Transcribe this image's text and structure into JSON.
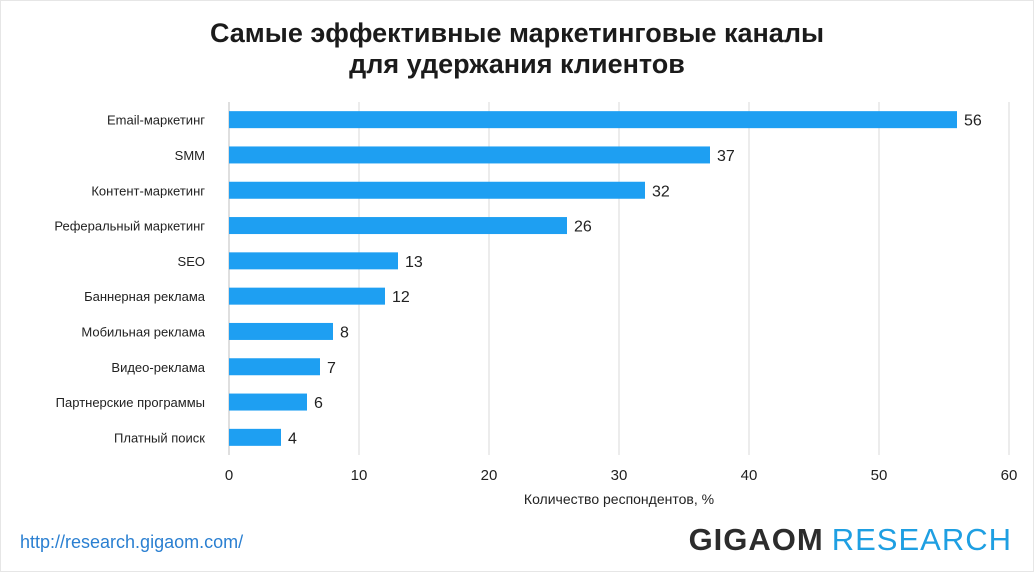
{
  "header": {
    "title_line1": "Самые эффективные маркетинговые каналы",
    "title_line2": "для удержания клиентов"
  },
  "footer": {
    "url": "http://research.gigaom.com/",
    "brand_bold": "GIGAOM",
    "brand_light": "RESEARCH"
  },
  "colors": {
    "bar": "#1e9ff2",
    "grid": "#d9d9d9",
    "text": "#222222"
  },
  "chart_data": {
    "type": "bar",
    "orientation": "horizontal",
    "categories": [
      "Email-маркетинг",
      "SMM",
      "Контент-маркетинг",
      "Реферальный маркетинг",
      "SEO",
      "Баннерная реклама",
      "Мобильная реклама",
      "Видео-реклама",
      "Партнерские программы",
      "Платный поиск"
    ],
    "values": [
      56,
      37,
      32,
      26,
      13,
      12,
      8,
      7,
      6,
      4
    ],
    "xlabel": "Количество респондентов, %",
    "xlim": [
      0,
      60
    ],
    "xticks": [
      0,
      10,
      20,
      30,
      40,
      50,
      60
    ],
    "grid": true
  }
}
